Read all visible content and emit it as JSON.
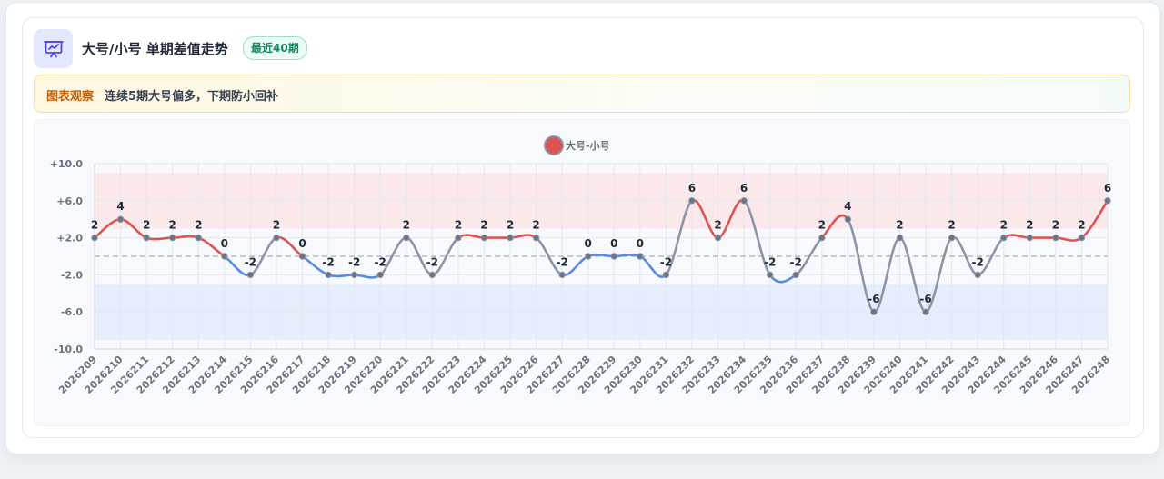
{
  "header": {
    "title": "大号/小号 单期差值走势",
    "badge": "最近40期",
    "icon": "chart-presentation-icon"
  },
  "notice": {
    "label": "图表观察",
    "text": "连续5期大号偏多，下期防小回补"
  },
  "colors": {
    "positive": "#e05252",
    "negative": "#5b8be0",
    "neutral": "#8b95a6",
    "positive_band": "#fbe8ea",
    "negative_band": "#e7eefb",
    "accent": "#4f46e5"
  },
  "chart_data": {
    "type": "line",
    "legend": "大号-小号",
    "legend_position": "top-center",
    "y_ticks": [
      "+10.0",
      "+6.0",
      "+2.0",
      "-2.0",
      "-6.0",
      "-10.0"
    ],
    "ylim": [
      -10,
      10
    ],
    "x": [
      "2026209",
      "2026210",
      "2026211",
      "2026212",
      "2026213",
      "2026214",
      "2026215",
      "2026216",
      "2026217",
      "2026218",
      "2026219",
      "2026220",
      "2026221",
      "2026222",
      "2026223",
      "2026224",
      "2026225",
      "2026226",
      "2026227",
      "2026228",
      "2026229",
      "2026230",
      "2026231",
      "2026232",
      "2026233",
      "2026234",
      "2026235",
      "2026236",
      "2026237",
      "2026238",
      "2026239",
      "2026240",
      "2026241",
      "2026242",
      "2026243",
      "2026244",
      "2026245",
      "2026246",
      "2026247",
      "2026248"
    ],
    "series": [
      {
        "name": "大号-小号",
        "values": [
          2,
          4,
          2,
          2,
          2,
          0,
          -2,
          2,
          0,
          -2,
          -2,
          -2,
          2,
          -2,
          2,
          2,
          2,
          2,
          -2,
          0,
          0,
          0,
          -2,
          6,
          2,
          6,
          -2,
          -2,
          2,
          4,
          -6,
          2,
          -6,
          2,
          -2,
          2,
          2,
          2,
          2,
          6
        ],
        "labels": [
          "2",
          "4",
          "2",
          "2",
          "2",
          "0",
          "-2",
          "2",
          "0",
          "-2",
          "-2",
          "-2",
          "2",
          "-2",
          "2",
          "2",
          "2",
          "2",
          "-2",
          "0",
          "0",
          "0",
          "-2",
          "6",
          "2",
          "6",
          "-2",
          "-2",
          "2",
          "4",
          "-6",
          "2",
          "-6",
          "2",
          "-2",
          "2",
          "2",
          "2",
          "2",
          "6"
        ]
      }
    ],
    "bands": [
      {
        "from": 3,
        "to": 9,
        "color": "#fbe8ea"
      },
      {
        "from": -9,
        "to": -3,
        "color": "#e7eefb"
      }
    ],
    "reference_line": 0,
    "grid": true
  }
}
